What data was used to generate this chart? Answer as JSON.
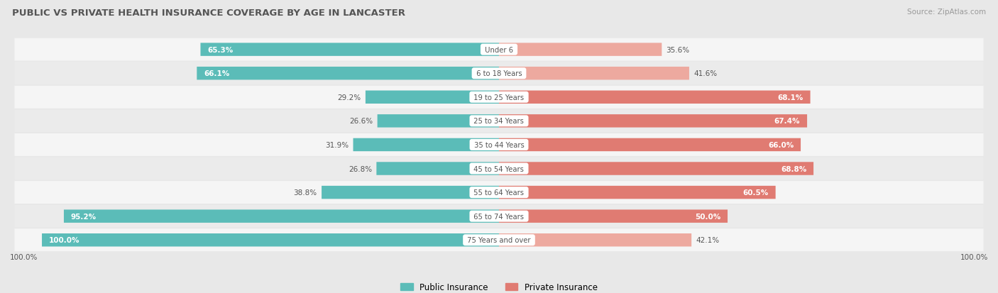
{
  "title": "PUBLIC VS PRIVATE HEALTH INSURANCE COVERAGE BY AGE IN LANCASTER",
  "source": "Source: ZipAtlas.com",
  "categories": [
    "Under 6",
    "6 to 18 Years",
    "19 to 25 Years",
    "25 to 34 Years",
    "35 to 44 Years",
    "45 to 54 Years",
    "55 to 64 Years",
    "65 to 74 Years",
    "75 Years and over"
  ],
  "public_values": [
    65.3,
    66.1,
    29.2,
    26.6,
    31.9,
    26.8,
    38.8,
    95.2,
    100.0
  ],
  "private_values": [
    35.6,
    41.6,
    68.1,
    67.4,
    66.0,
    68.8,
    60.5,
    50.0,
    42.1
  ],
  "public_color": "#5bbcb8",
  "private_color": "#e07b72",
  "private_color_light": "#eda99f",
  "bg_color": "#e8e8e8",
  "row_bg_odd": "#f5f5f5",
  "row_bg_even": "#ebebeb",
  "title_color": "#555555",
  "source_color": "#999999",
  "label_dark": "#555555",
  "label_light": "#ffffff",
  "bar_height": 0.52,
  "figsize": [
    14.06,
    4.14
  ],
  "dpi": 100,
  "max_val": 100.0
}
